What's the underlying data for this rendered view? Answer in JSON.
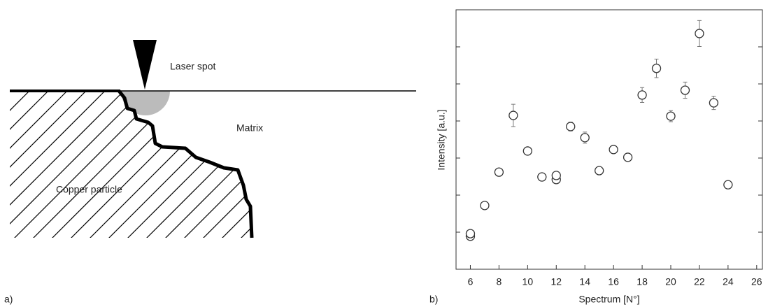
{
  "diagram": {
    "panel_label": "a)",
    "labels": [
      "Laser spot",
      "Matrix",
      "Copper particle"
    ]
  },
  "chart_data": {
    "type": "scatter",
    "panel_label": "b)",
    "x_label": "Spectrum [N°]",
    "y_label": "Intensity [a.u.]",
    "x": [
      6,
      6,
      7,
      8,
      9,
      10,
      11,
      12,
      12,
      13,
      14,
      15,
      16,
      17,
      18,
      19,
      20,
      21,
      22,
      23,
      24
    ],
    "values": [
      0.89,
      0.96,
      1.72,
      2.62,
      4.15,
      3.19,
      2.49,
      2.42,
      2.53,
      3.85,
      3.55,
      2.66,
      3.23,
      3.02,
      4.7,
      5.42,
      4.13,
      4.83,
      6.36,
      4.49,
      2.28
    ],
    "errors": [
      0.05,
      0.05,
      0.08,
      0.08,
      0.3,
      0.1,
      0.06,
      0.06,
      0.06,
      0.12,
      0.15,
      0.08,
      0.1,
      0.08,
      0.2,
      0.25,
      0.15,
      0.22,
      0.35,
      0.18,
      0.08
    ],
    "color": "#333333",
    "xlim": [
      5,
      26.4
    ],
    "xticks": [
      6,
      8,
      10,
      12,
      14,
      16,
      18,
      20,
      22,
      24,
      26
    ],
    "ylim": [
      0,
      7
    ],
    "yticks": [
      1,
      2,
      3,
      4,
      5,
      6
    ]
  }
}
